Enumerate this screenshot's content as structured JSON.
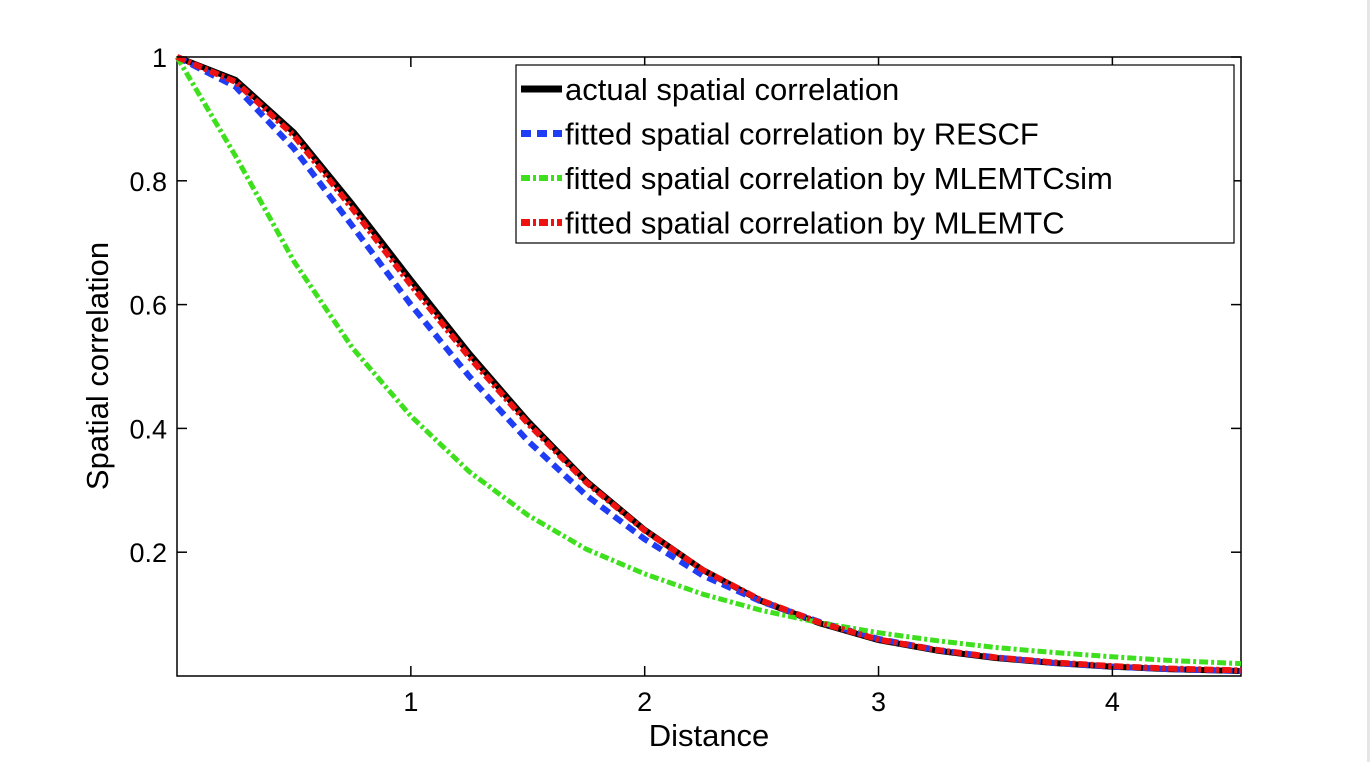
{
  "chart_data": {
    "type": "line",
    "title": "",
    "xlabel": "Distance",
    "ylabel": "Spatial correlation",
    "xlim": [
      0,
      4.55
    ],
    "ylim": [
      0,
      1
    ],
    "xticks": [
      1,
      2,
      3,
      4
    ],
    "xtick_labels": [
      "1",
      "2",
      "3",
      "4"
    ],
    "yticks": [
      0.2,
      0.4,
      0.6,
      0.8,
      1
    ],
    "ytick_labels": [
      "0.2",
      "0.4",
      "0.6",
      "0.8",
      "1"
    ],
    "grid": false,
    "legend_position": "top-right",
    "x": [
      0,
      0.25,
      0.5,
      0.75,
      1.0,
      1.25,
      1.5,
      1.75,
      2.0,
      2.25,
      2.5,
      2.75,
      3.0,
      3.25,
      3.5,
      3.75,
      4.0,
      4.25,
      4.55
    ],
    "series": [
      {
        "name": "actual spatial correlation",
        "color": "#000000",
        "style": "solid",
        "values": [
          1.0,
          0.963,
          0.878,
          0.762,
          0.64,
          0.521,
          0.412,
          0.315,
          0.236,
          0.171,
          0.121,
          0.085,
          0.058,
          0.041,
          0.029,
          0.021,
          0.015,
          0.011,
          0.008
        ]
      },
      {
        "name": "fitted spatial correlation by RESCF",
        "color": "#1f3df5",
        "style": "dashed",
        "values": [
          1.0,
          0.952,
          0.852,
          0.727,
          0.6,
          0.484,
          0.38,
          0.292,
          0.221,
          0.162,
          0.12,
          0.087,
          0.06,
          0.042,
          0.03,
          0.021,
          0.015,
          0.011,
          0.008
        ]
      },
      {
        "name": "fitted spatial correlation by MLEMTCsim",
        "color": "#3ee01e",
        "style": "dashdot",
        "values": [
          1.0,
          0.84,
          0.67,
          0.53,
          0.42,
          0.33,
          0.26,
          0.205,
          0.165,
          0.132,
          0.106,
          0.086,
          0.07,
          0.057,
          0.046,
          0.038,
          0.031,
          0.025,
          0.02
        ]
      },
      {
        "name": "fitted spatial correlation by MLEMTC",
        "color": "#ee1111",
        "style": "dashdot",
        "values": [
          1.0,
          0.96,
          0.873,
          0.755,
          0.632,
          0.515,
          0.408,
          0.313,
          0.235,
          0.171,
          0.122,
          0.086,
          0.059,
          0.042,
          0.03,
          0.022,
          0.016,
          0.012,
          0.009
        ]
      }
    ]
  }
}
